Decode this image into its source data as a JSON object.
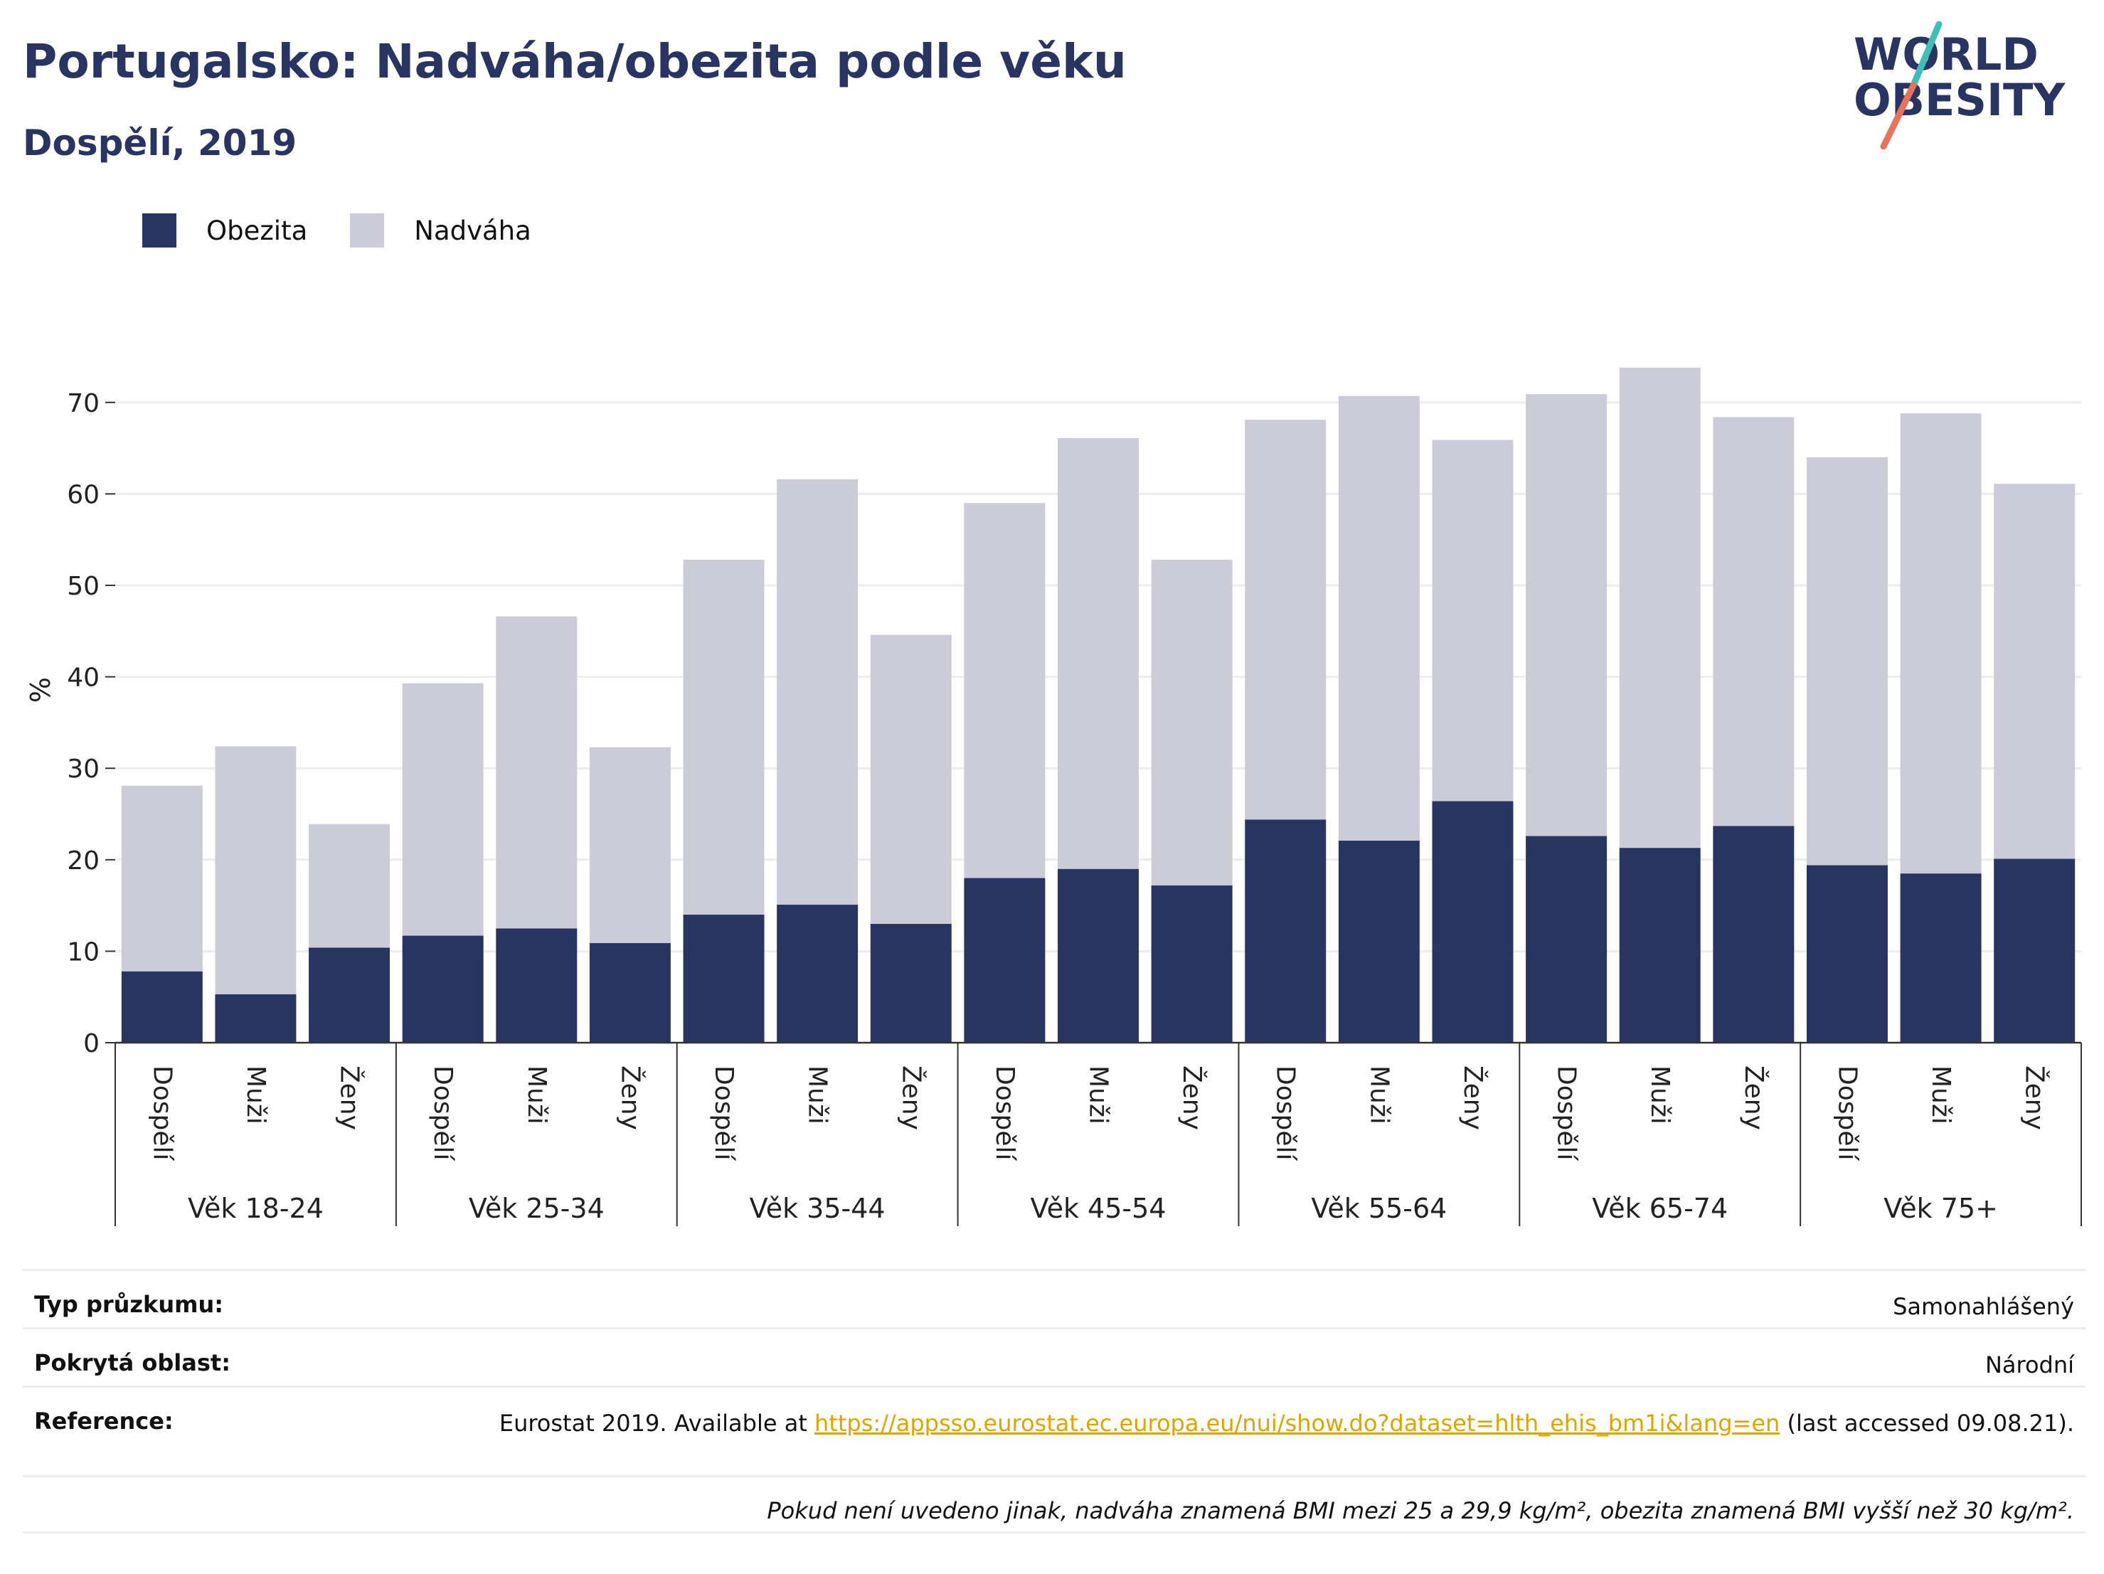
{
  "header": {
    "title": "Portugalsko: Nadváha/obezita podle věku",
    "subtitle": "Dospělí, 2019",
    "logo_line1": "WORLD",
    "logo_line2": "OBESITY"
  },
  "colors": {
    "obesity": "#283462",
    "overweight": "#cbccd8",
    "title": "#283462",
    "link": "#e0a400",
    "logo_slash_top": "#3fbfb8",
    "logo_slash_bottom": "#e8735d"
  },
  "legend": {
    "items": [
      {
        "label": "Obezita",
        "color": "#283462"
      },
      {
        "label": "Nadváha",
        "color": "#cbccd8"
      }
    ]
  },
  "chart_data": {
    "type": "bar",
    "stacked": true,
    "ylabel": "%",
    "ylim": [
      0,
      75
    ],
    "yticks": [
      0,
      10,
      20,
      30,
      40,
      50,
      60,
      70
    ],
    "grid": true,
    "legend_position": "top-left",
    "groups": [
      {
        "label": "Věk 18-24",
        "categories": [
          "Dospělí",
          "Muži",
          "Ženy"
        ]
      },
      {
        "label": "Věk 25-34",
        "categories": [
          "Dospělí",
          "Muži",
          "Ženy"
        ]
      },
      {
        "label": "Věk 35-44",
        "categories": [
          "Dospělí",
          "Muži",
          "Ženy"
        ]
      },
      {
        "label": "Věk 45-54",
        "categories": [
          "Dospělí",
          "Muži",
          "Ženy"
        ]
      },
      {
        "label": "Věk 55-64",
        "categories": [
          "Dospělí",
          "Muži",
          "Ženy"
        ]
      },
      {
        "label": "Věk 65-74",
        "categories": [
          "Dospělí",
          "Muži",
          "Ženy"
        ]
      },
      {
        "label": "Věk 75+",
        "categories": [
          "Dospělí",
          "Muži",
          "Ženy"
        ]
      }
    ],
    "series": [
      {
        "name": "Obezita",
        "values": [
          7.8,
          5.3,
          10.4,
          11.7,
          12.5,
          10.9,
          14.0,
          15.1,
          13.0,
          18.0,
          19.0,
          17.2,
          24.4,
          22.1,
          26.4,
          22.6,
          21.3,
          23.7,
          19.4,
          18.5,
          20.1
        ]
      },
      {
        "name": "Nadváha",
        "values": [
          20.3,
          27.1,
          13.5,
          27.6,
          34.1,
          21.4,
          38.8,
          46.5,
          31.6,
          41.0,
          47.1,
          35.6,
          43.7,
          48.6,
          39.5,
          48.3,
          52.5,
          44.7,
          44.6,
          50.3,
          41.0
        ]
      }
    ]
  },
  "info": {
    "survey_type_label": "Typ průzkumu:",
    "survey_type_value": "Samonahlášený",
    "coverage_label": "Pokrytá oblast:",
    "coverage_value": "Národní",
    "reference_label": "Reference:",
    "reference_prefix": "Eurostat 2019. Available at ",
    "reference_link": "https://appsso.eurostat.ec.europa.eu/nui/show.do?dataset=hlth_ehis_bm1i&lang=en",
    "reference_suffix": " (last accessed 09.08.21).",
    "note": "Pokud není uvedeno jinak, nadváha znamená BMI mezi 25 a 29,9 kg/m², obezita znamená BMI vyšší než 30 kg/m²."
  }
}
